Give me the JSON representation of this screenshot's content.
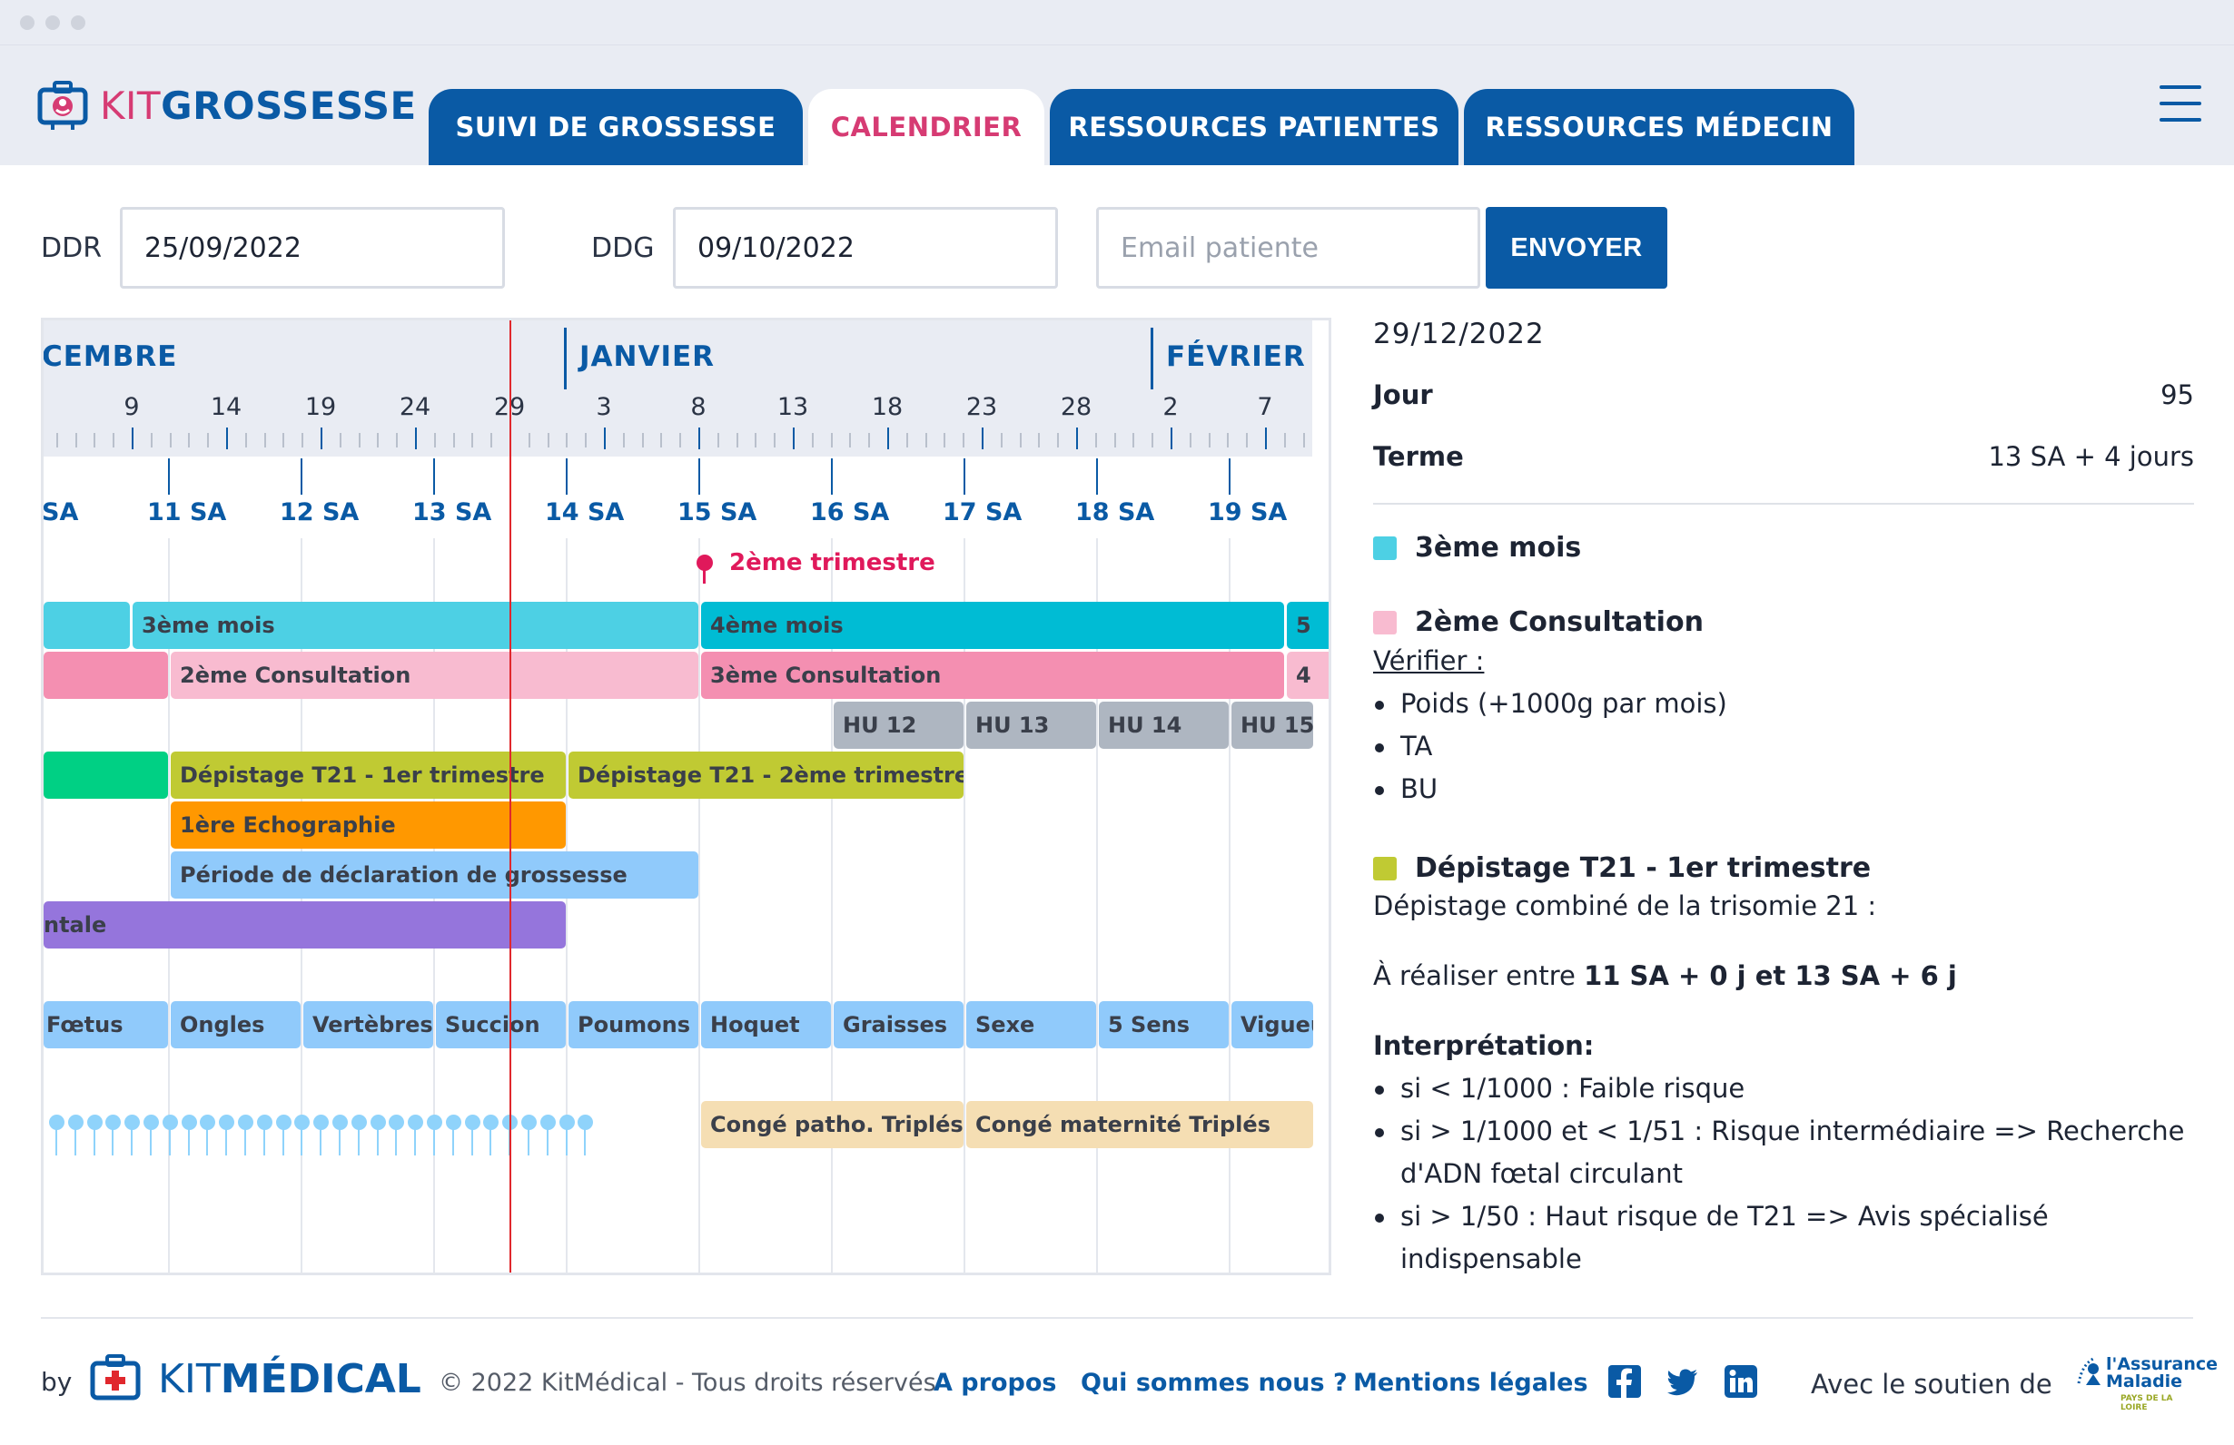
{
  "header": {
    "logo_kit": "KIT",
    "logo_grossesse": "GROSSESSE",
    "tabs": [
      {
        "label": "SUIVI DE GROSSESSE"
      },
      {
        "label": "CALENDRIER"
      },
      {
        "label": "RESSOURCES PATIENTES"
      },
      {
        "label": "RESSOURCES MÉDECIN"
      }
    ],
    "active_tab": "CALENDRIER"
  },
  "form": {
    "ddr_label": "DDR",
    "ddr_value": "25/09/2022",
    "ddg_label": "DDG",
    "ddg_value": "09/10/2022",
    "email_placeholder": "Email patiente",
    "send_label": "ENVOYER"
  },
  "calendar": {
    "months": [
      "CEMBRE",
      "JANVIER",
      "FÉVRIER"
    ],
    "days": [
      "9",
      "14",
      "19",
      "24",
      "29",
      "3",
      "8",
      "13",
      "18",
      "23",
      "28",
      "2",
      "7"
    ],
    "weeks": [
      "SA",
      "11 SA",
      "12 SA",
      "13 SA",
      "14 SA",
      "15 SA",
      "16 SA",
      "17 SA",
      "18 SA",
      "19 SA"
    ],
    "milestone": "2ème trimestre",
    "bars": {
      "mois3": "3ème mois",
      "mois4": "4ème mois",
      "mois5": "5",
      "consult2": "2ème Consultation",
      "consult3": "3ème Consultation",
      "consult4": "4",
      "hu12": "HU 12",
      "hu13": "HU 13",
      "hu14": "HU 14",
      "hu15": "HU 15",
      "t21a": "Dépistage T21 - 1er trimestre",
      "t21b": "Dépistage T21 - 2ème trimestre",
      "echo1": "1ère Echographie",
      "declar": "Période de déclaration de grossesse",
      "prenatale": "ntale",
      "conge1": "Congé patho. Triplés",
      "conge2": "Congé maternité Triplés"
    },
    "foetus": [
      "Fœtus",
      "Ongles",
      "Vertèbres",
      "Succion",
      "Poumons",
      "Hoquet",
      "Graisses",
      "Sexe",
      "5 Sens",
      "Vigueu"
    ],
    "colors": {
      "mois3": "#4dd0e4",
      "mois4": "#00bcd4",
      "consult2": "#f8bbd0",
      "consult3": "#f48fb1",
      "hu": "#aeb6c1",
      "t21": "#c0ca33",
      "green": "#00d084",
      "echo": "#ff9800",
      "declar": "#90cafb",
      "violet": "#9575dc",
      "foetus": "#90cafb",
      "conge": "#f5deb3"
    }
  },
  "side": {
    "date": "29/12/2022",
    "jour_label": "Jour",
    "jour_value": "95",
    "terme_label": "Terme",
    "terme_value": "13 SA + 4 jours",
    "s1_title": "3ème mois",
    "s2_title": "2ème Consultation",
    "verifier": "Vérifier :",
    "checks": [
      "Poids (+1000g par mois)",
      "TA",
      "BU"
    ],
    "s3_title": "Dépistage T21 - 1er trimestre",
    "s3_desc": "Dépistage combiné de la trisomie 21 :",
    "s3_real_prefix": "À réaliser entre ",
    "s3_real_range": "11 SA + 0 j et 13 SA + 6 j",
    "interp_title": "Interprétation:",
    "interp": [
      "si < 1/1000 : Faible risque",
      "si > 1/1000 et < 1/51 : Risque intermédiaire => Recherche d'ADN fœtal circulant",
      "si > 1/50 : Haut risque de T21 => Avis spécialisé indispensable"
    ]
  },
  "footer": {
    "by": "by",
    "logo_kit": "KIT",
    "logo_medical": "MÉDICAL",
    "copyright": "© 2022 KitMédical - Tous droits réservés",
    "links": [
      "A propos",
      "Qui sommes nous ?",
      "Mentions légales"
    ],
    "support": "Avec le soutien de",
    "assurance_line1": "l'Assurance",
    "assurance_line2": "Maladie",
    "assurance_line3": "PAYS DE LA LOIRE"
  }
}
